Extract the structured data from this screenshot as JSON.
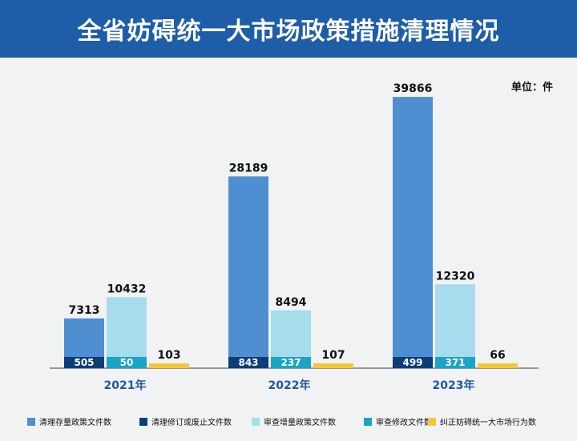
{
  "header": {
    "title": "全省妨碍统一大市场政策措施清理情况"
  },
  "unit_label": "单位：件",
  "chart_data": {
    "type": "bar",
    "categories": [
      "2021年",
      "2022年",
      "2023年"
    ],
    "series": [
      {
        "name": "清理存量政策文件数",
        "values": [
          7313,
          28189,
          39866
        ],
        "color": "#4f8fd1",
        "group": 0,
        "layer": 0,
        "label_pos": "top"
      },
      {
        "name": "清理修订或废止文件数",
        "values": [
          505,
          843,
          499
        ],
        "color": "#0d3d77",
        "group": 0,
        "layer": 1,
        "label_pos": "inside"
      },
      {
        "name": "审查增量政策文件数",
        "values": [
          10432,
          8494,
          12320
        ],
        "color": "#a6dcec",
        "group": 1,
        "layer": 0,
        "label_pos": "top"
      },
      {
        "name": "审查修改文件数",
        "values": [
          50,
          237,
          371
        ],
        "color": "#1aa4c6",
        "group": 1,
        "layer": 1,
        "label_pos": "inside"
      },
      {
        "name": "纠正妨碍统一大市场行为数",
        "values": [
          103,
          107,
          66
        ],
        "color": "#f3c73a",
        "group": 2,
        "layer": 0,
        "label_pos": "top"
      }
    ],
    "legend_position": "bottom",
    "grid": false
  }
}
